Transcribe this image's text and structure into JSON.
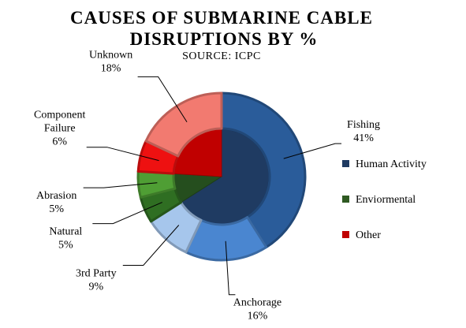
{
  "chart_data": {
    "type": "pie",
    "title_line1": "CAUSES OF SUBMARINE CABLE",
    "title_line2": "DISRUPTIONS BY %",
    "subtitle": "SOURCE: ICPC",
    "inner_series": [
      {
        "name": "Human Activity",
        "value": 66,
        "color": "#1F3B62"
      },
      {
        "name": "Enviormental",
        "value": 10,
        "color": "#254E1E"
      },
      {
        "name": "Other",
        "value": 24,
        "color": "#C00000"
      }
    ],
    "outer_series": [
      {
        "name": "Fishing",
        "value": 41,
        "label": "41%",
        "color": "#2A5C9A"
      },
      {
        "name": "Anchorage",
        "value": 16,
        "label": "16%",
        "color": "#4A86D0"
      },
      {
        "name": "3rd Party",
        "value": 9,
        "label": "9%",
        "color": "#A6C6EC"
      },
      {
        "name": "Natural",
        "value": 5,
        "label": "5%",
        "color": "#2F6E22"
      },
      {
        "name": "Abrasion",
        "value": 5,
        "label": "5%",
        "color": "#4F9E34"
      },
      {
        "name": "Component Failure",
        "value": 6,
        "label": "6%",
        "color": "#EE1111"
      },
      {
        "name": "Unknown",
        "value": 18,
        "label": "18%",
        "color": "#F27A70"
      }
    ],
    "legend": [
      {
        "name": "Human Activity",
        "color": "#1F3B62"
      },
      {
        "name": "Enviormental",
        "color": "#2F5A22"
      },
      {
        "name": "Other",
        "color": "#C00000"
      }
    ],
    "legend_position": "right"
  }
}
